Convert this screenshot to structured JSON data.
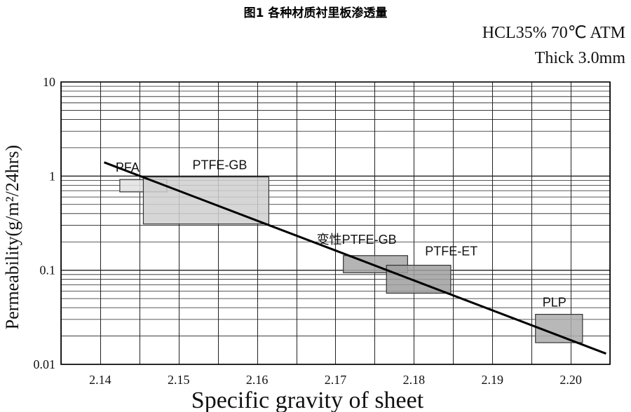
{
  "chart_data": {
    "type": "scatter",
    "title": "图1 各种材质衬里板渗透量",
    "conditions": [
      "HCL35%  70℃  ATM",
      "Thick 3.0mm"
    ],
    "xlabel": "Specific  gravity  of  sheet",
    "ylabel": "Permeability(g/m²/24hrs)",
    "xlim": [
      2.135,
      2.205
    ],
    "ylim": [
      0.01,
      10
    ],
    "yscale": "log",
    "grid": true,
    "x_ticks": [
      2.14,
      2.15,
      2.16,
      2.17,
      2.18,
      2.19,
      2.2
    ],
    "x_tick_labels": [
      "2.14",
      "2.15",
      "2.16",
      "2.17",
      "2.18",
      "2.19",
      "2.20"
    ],
    "y_ticks": [
      0.01,
      0.1,
      1,
      10
    ],
    "y_tick_labels": [
      "0.01",
      "0.1",
      "1",
      "10"
    ],
    "regions": [
      {
        "label": "PFA",
        "x": [
          2.1425,
          2.1485
        ],
        "y": [
          0.68,
          0.92
        ],
        "color": "#e2e2e2"
      },
      {
        "label": "PTFE-GB",
        "x": [
          2.1455,
          2.1615
        ],
        "y": [
          0.31,
          0.98
        ],
        "color": "#cfcfcf"
      },
      {
        "label": "变性PTFE-GB",
        "x": [
          2.171,
          2.1792
        ],
        "y": [
          0.094,
          0.143
        ],
        "color": "#a7a7a7"
      },
      {
        "label": "PTFE-ET",
        "x": [
          2.1765,
          2.1847
        ],
        "y": [
          0.057,
          0.113
        ],
        "color": "#9f9f9f"
      },
      {
        "label": "PLP",
        "x": [
          2.1955,
          2.2015
        ],
        "y": [
          0.017,
          0.034
        ],
        "color": "#ababab"
      }
    ],
    "trend_line": {
      "x": [
        2.1405,
        2.2045
      ],
      "y": [
        1.4,
        0.013
      ]
    }
  }
}
